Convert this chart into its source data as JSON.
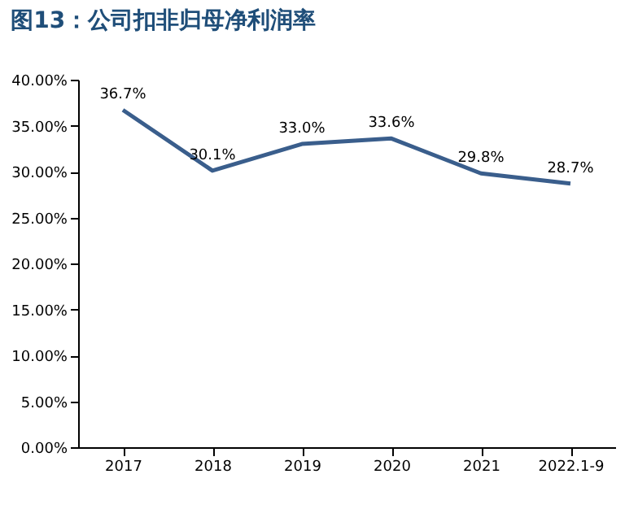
{
  "chart_data": {
    "type": "line",
    "title": "图13：公司扣非归母净利润率",
    "categories": [
      "2017",
      "2018",
      "2019",
      "2020",
      "2021",
      "2022.1-9"
    ],
    "series": [
      {
        "color": "#3a5e8c",
        "values": [
          36.7,
          30.1,
          33.0,
          33.6,
          29.8,
          28.7
        ],
        "value_labels": [
          "36.7%",
          "30.1%",
          "33.0%",
          "33.6%",
          "29.8%",
          "28.7%"
        ]
      }
    ],
    "ylim": [
      0,
      40
    ],
    "yticks": [
      {
        "value": 0,
        "label": "0.00%"
      },
      {
        "value": 5,
        "label": "5.00%"
      },
      {
        "value": 10,
        "label": "10.00%"
      },
      {
        "value": 15,
        "label": "15.00%"
      },
      {
        "value": 20,
        "label": "20.00%"
      },
      {
        "value": 25,
        "label": "25.00%"
      },
      {
        "value": 30,
        "label": "30.00%"
      },
      {
        "value": 35,
        "label": "35.00%"
      },
      {
        "value": 40,
        "label": "40.00%"
      }
    ],
    "marker": "none",
    "line_style": "solid"
  }
}
